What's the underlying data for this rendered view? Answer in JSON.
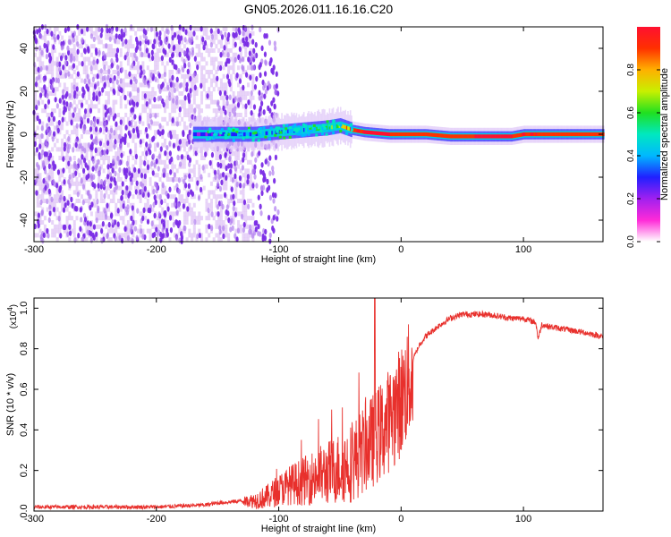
{
  "figure_title": "GN05.2026.011.16.16.C20",
  "colors": {
    "background": "#ffffff",
    "axis": "#000000",
    "snr_line": "#e8302c",
    "noise_purple": "#7a2be6"
  },
  "chart_data": [
    {
      "id": "spectrogram",
      "type": "heatmap",
      "title": "GN05.2026.011.16.16.C20",
      "xlabel": "Height of straight line (km)",
      "ylabel": "Frequency (Hz)",
      "xlim": [
        -300,
        165
      ],
      "ylim": [
        -50,
        50
      ],
      "xticks": [
        -300,
        -200,
        -100,
        0,
        100
      ],
      "xtick_labels": [
        "-300",
        "-200",
        "-100",
        "0",
        "100"
      ],
      "yticks": [
        -40,
        -20,
        0,
        20,
        40
      ],
      "ytick_labels": [
        "-40",
        "-20",
        "0",
        "20",
        "40"
      ],
      "colorbar": {
        "label": "Normalized spectral amplitude",
        "range": [
          0,
          1
        ],
        "ticks": [
          0.0,
          0.2,
          0.4,
          0.6,
          0.8
        ],
        "tick_labels": [
          "0.0",
          "0.2",
          "0.4",
          "0.6",
          "0.8"
        ],
        "colormap": [
          "#ffffff",
          "#ff2ad8",
          "#a020f0",
          "#2020ff",
          "#00b8ff",
          "#00e8c0",
          "#20e020",
          "#c8f000",
          "#ffb000",
          "#ff3000",
          "#ff1030"
        ]
      },
      "ridge": {
        "description_free": true,
        "x": [
          -170,
          -150,
          -120,
          -100,
          -80,
          -60,
          -50,
          -40,
          -30,
          -10,
          0,
          20,
          40,
          60,
          80,
          90,
          100,
          110,
          130,
          150,
          165
        ],
        "freq": [
          0,
          0,
          0,
          1,
          2,
          3,
          4,
          2,
          1,
          0,
          0,
          0,
          -1,
          -1,
          -1,
          -1,
          0,
          0,
          0,
          0,
          0
        ],
        "amplitude": [
          0.25,
          0.3,
          0.35,
          0.4,
          0.45,
          0.5,
          0.6,
          0.85,
          0.95,
          0.95,
          0.9,
          0.85,
          0.9,
          0.95,
          0.95,
          0.95,
          0.9,
          0.95,
          0.85,
          0.85,
          0.9
        ]
      },
      "noise_region_x": [
        -300,
        -120
      ]
    },
    {
      "id": "snr",
      "type": "line",
      "xlabel": "Height of straight line (km)",
      "ylabel": "SNR (10 * v/v)",
      "multiplier_label": "(x10",
      "multiplier_exp": "4",
      "multiplier_close": ")",
      "xlim": [
        -300,
        165
      ],
      "ylim": [
        0,
        1.05
      ],
      "xticks": [
        -300,
        -200,
        -100,
        0,
        100
      ],
      "xtick_labels": [
        "-300",
        "-200",
        "-100",
        "0",
        "100"
      ],
      "yticks": [
        0.0,
        0.2,
        0.4,
        0.6,
        0.8,
        1.0
      ],
      "ytick_labels": [
        "0.0",
        "0.2",
        "0.4",
        "0.6",
        "0.8",
        "1.0"
      ],
      "series": [
        {
          "name": "SNR",
          "x": [
            -300,
            -250,
            -200,
            -160,
            -150,
            -130,
            -120,
            -110,
            -100,
            -90,
            -80,
            -70,
            -60,
            -50,
            -40,
            -30,
            -25,
            -20,
            -15,
            -10,
            -5,
            0,
            5,
            10,
            15,
            20,
            30,
            40,
            50,
            60,
            70,
            80,
            90,
            100,
            105,
            110,
            112,
            115,
            120,
            130,
            140,
            150,
            165
          ],
          "y": [
            0.02,
            0.02,
            0.02,
            0.03,
            0.04,
            0.05,
            0.06,
            0.08,
            0.12,
            0.15,
            0.17,
            0.2,
            0.22,
            0.25,
            0.28,
            0.35,
            0.38,
            0.42,
            0.45,
            0.5,
            0.55,
            0.6,
            0.68,
            0.75,
            0.82,
            0.86,
            0.91,
            0.95,
            0.97,
            0.97,
            0.97,
            0.96,
            0.95,
            0.95,
            0.94,
            0.93,
            0.85,
            0.92,
            0.91,
            0.9,
            0.89,
            0.88,
            0.86
          ]
        }
      ]
    }
  ]
}
